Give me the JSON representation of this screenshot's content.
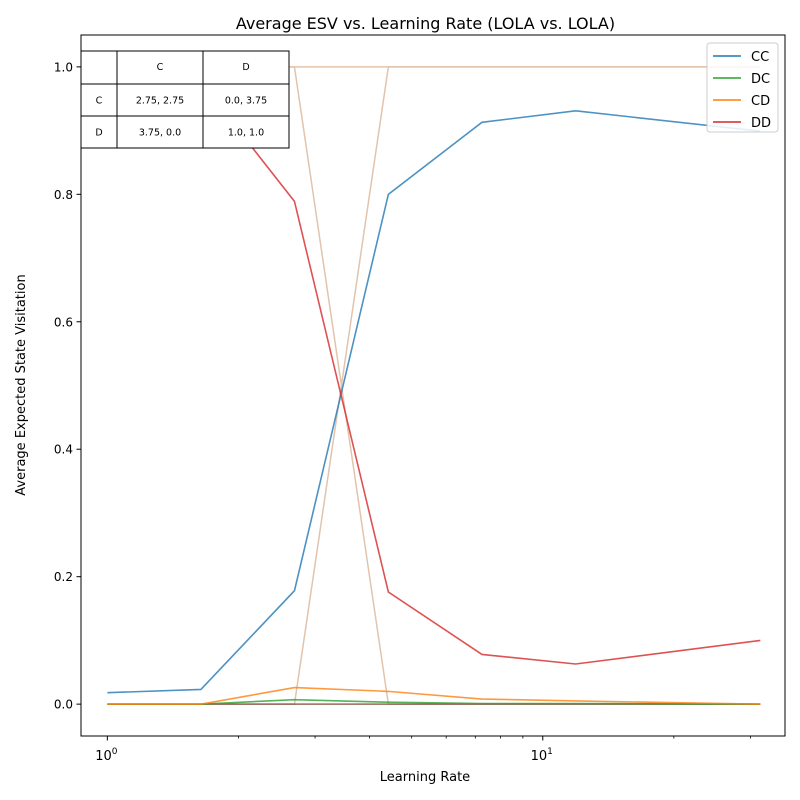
{
  "chart_data": {
    "type": "line",
    "title": "Average ESV vs. Learning Rate (LOLA vs. LOLA)",
    "xlabel": "Learning Rate",
    "ylabel": "Average Expected State Visitation",
    "xscale": "log",
    "xlim": [
      0.87,
      36
    ],
    "ylim": [
      -0.05,
      1.05
    ],
    "xticks": [
      {
        "value": 1,
        "base": "10",
        "exp": "0"
      },
      {
        "value": 10,
        "base": "10",
        "exp": "1"
      }
    ],
    "xminor": [
      2,
      3,
      4,
      5,
      6,
      7,
      8,
      9,
      20,
      30
    ],
    "yticks": [
      {
        "value": 0.0,
        "label": "0.0"
      },
      {
        "value": 0.2,
        "label": "0.2"
      },
      {
        "value": 0.4,
        "label": "0.4"
      },
      {
        "value": 0.6,
        "label": "0.6"
      },
      {
        "value": 0.8,
        "label": "0.8"
      },
      {
        "value": 1.0,
        "label": "1.0"
      }
    ],
    "grid": false,
    "legend": "top-right",
    "x": [
      1.0,
      1.64,
      2.69,
      4.42,
      7.25,
      11.9,
      31.6
    ],
    "series": [
      {
        "name": "CC",
        "color": "#1f77b4",
        "values": [
          0.018,
          0.023,
          0.178,
          0.8,
          0.913,
          0.931,
          0.899
        ]
      },
      {
        "name": "DC",
        "color": "#2ca02c",
        "values": [
          0.0,
          0.0,
          0.007,
          0.003,
          0.001,
          0.001,
          0.0
        ]
      },
      {
        "name": "CD",
        "color": "#ff7f0e",
        "values": [
          0.0,
          0.0,
          0.026,
          0.02,
          0.008,
          0.005,
          0.0
        ]
      },
      {
        "name": "DD",
        "color": "#d62728",
        "values": [
          0.981,
          0.976,
          0.789,
          0.176,
          0.078,
          0.063,
          0.1
        ]
      }
    ],
    "extra_series": [
      {
        "color": "#e2c4ad",
        "values": [
          1.0,
          1.0,
          1.0,
          1.0,
          1.0,
          1.0,
          1.0
        ]
      },
      {
        "color": "#e2c4ad",
        "values": [
          1.0,
          1.0,
          1.0,
          0.0,
          0.0,
          0.0,
          0.0
        ]
      },
      {
        "color": "#e2c4ad",
        "values": [
          0.0,
          0.0,
          0.0,
          1.0,
          1.0,
          1.0,
          1.0
        ]
      },
      {
        "color": "#8c564b",
        "values": [
          0.0,
          0.0,
          0.0,
          0.0,
          0.0,
          0.0,
          0.0
        ]
      }
    ],
    "payoff_table": {
      "header": [
        "",
        "C",
        "D"
      ],
      "rows": [
        [
          "C",
          "2.75, 2.75",
          "0.0, 3.75"
        ],
        [
          "D",
          "3.75, 0.0",
          "1.0, 1.0"
        ]
      ]
    }
  }
}
